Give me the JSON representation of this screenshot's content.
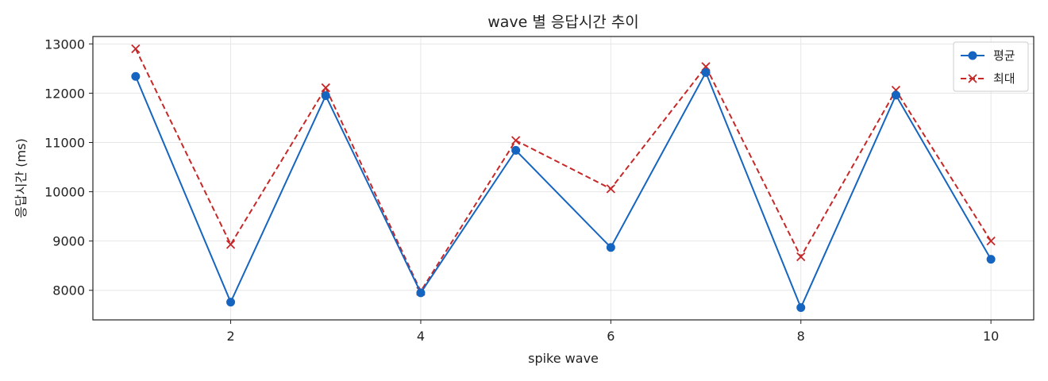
{
  "chart_data": {
    "type": "line",
    "title": "wave 별 응답시간 추이",
    "xlabel": "spike wave",
    "ylabel": "응답시간 (ms)",
    "x": [
      1,
      2,
      3,
      4,
      5,
      6,
      7,
      8,
      9,
      10
    ],
    "xlim": [
      0.55,
      10.45
    ],
    "ylim": [
      7400,
      13150
    ],
    "xticks": [
      2,
      4,
      6,
      8,
      10
    ],
    "yticks": [
      8000,
      9000,
      10000,
      11000,
      12000,
      13000
    ],
    "grid": true,
    "legend_position": "top-right",
    "series": [
      {
        "name": "평균",
        "color": "#1565c0",
        "marker": "circle",
        "line_style": "solid",
        "values": [
          12340,
          7760,
          11950,
          7950,
          10840,
          8870,
          12420,
          7650,
          11960,
          8630
        ]
      },
      {
        "name": "최대",
        "color": "#c62828",
        "marker": "x",
        "line_style": "dashed",
        "values": [
          12900,
          8930,
          12110,
          7980,
          11040,
          10060,
          12540,
          8680,
          12060,
          9000
        ]
      }
    ]
  }
}
